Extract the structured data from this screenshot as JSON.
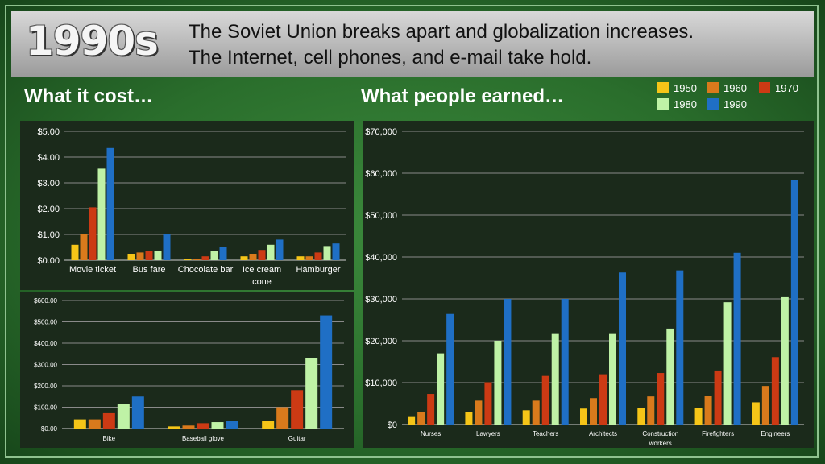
{
  "header": {
    "decade": "1990s",
    "line1": "The Soviet Union breaks apart and globalization increases.",
    "line2": "The Internet, cell phones, and e-mail take hold."
  },
  "sections": {
    "cost_title": "What it cost…",
    "earned_title": "What people earned…"
  },
  "legend": [
    {
      "label": "1950",
      "color": "#F5C518"
    },
    {
      "label": "1960",
      "color": "#D97A1C"
    },
    {
      "label": "1970",
      "color": "#CC3A14"
    },
    {
      "label": "1980",
      "color": "#BFF2A6"
    },
    {
      "label": "1990",
      "color": "#1F6FC5"
    }
  ],
  "chart_data": [
    {
      "type": "bar",
      "categories": [
        "Movie ticket",
        "Bus fare",
        "Chocolate bar",
        "Ice cream cone",
        "Hamburger"
      ],
      "category_lines": [
        [
          "Movie ticket"
        ],
        [
          "Bus fare"
        ],
        [
          "Chocolate bar"
        ],
        [
          "Ice cream",
          "cone"
        ],
        [
          "Hamburger"
        ]
      ],
      "series": [
        {
          "name": "1950",
          "values": [
            0.6,
            0.25,
            0.05,
            0.15,
            0.15
          ]
        },
        {
          "name": "1960",
          "values": [
            1.0,
            0.3,
            0.05,
            0.25,
            0.15
          ]
        },
        {
          "name": "1970",
          "values": [
            2.05,
            0.35,
            0.15,
            0.4,
            0.3
          ]
        },
        {
          "name": "1980",
          "values": [
            3.55,
            0.35,
            0.35,
            0.6,
            0.55
          ]
        },
        {
          "name": "1990",
          "values": [
            4.35,
            1.0,
            0.5,
            0.8,
            0.65
          ]
        }
      ],
      "ylim": [
        0,
        5
      ],
      "yticks": [
        0,
        1,
        2,
        3,
        4,
        5
      ],
      "ytick_labels": [
        "$0.00",
        "$1.00",
        "$2.00",
        "$3.00",
        "$4.00",
        "$5.00"
      ],
      "grid": true
    },
    {
      "type": "bar",
      "categories": [
        "Bike",
        "Baseball glove",
        "Guitar"
      ],
      "category_lines": [
        [
          "Bike"
        ],
        [
          "Baseball glove"
        ],
        [
          "Guitar"
        ]
      ],
      "series": [
        {
          "name": "1950",
          "values": [
            43,
            10,
            35
          ]
        },
        {
          "name": "1960",
          "values": [
            43,
            14,
            100
          ]
        },
        {
          "name": "1970",
          "values": [
            72,
            25,
            180
          ]
        },
        {
          "name": "1980",
          "values": [
            115,
            30,
            330
          ]
        },
        {
          "name": "1990",
          "values": [
            150,
            35,
            530
          ]
        }
      ],
      "ylim": [
        0,
        600
      ],
      "yticks": [
        0,
        100,
        200,
        300,
        400,
        500,
        600
      ],
      "ytick_labels": [
        "$0.00",
        "$100.00",
        "$200.00",
        "$300.00",
        "$400.00",
        "$500.00",
        "$600.00"
      ],
      "grid": true
    },
    {
      "type": "bar",
      "categories": [
        "Nurses",
        "Lawyers",
        "Teachers",
        "Architects",
        "Construction workers",
        "Firefighters",
        "Engineers"
      ],
      "category_lines": [
        [
          "Nurses"
        ],
        [
          "Lawyers"
        ],
        [
          "Teachers"
        ],
        [
          "Architects"
        ],
        [
          "Construction",
          "workers"
        ],
        [
          "Firefighters"
        ],
        [
          "Engineers"
        ]
      ],
      "series": [
        {
          "name": "1950",
          "values": [
            1800,
            3000,
            3400,
            3800,
            3900,
            4000,
            5300
          ]
        },
        {
          "name": "1960",
          "values": [
            3000,
            5700,
            5700,
            6300,
            6700,
            6900,
            9200
          ]
        },
        {
          "name": "1970",
          "values": [
            7300,
            10100,
            11600,
            12000,
            12300,
            12900,
            16100
          ]
        },
        {
          "name": "1980",
          "values": [
            17000,
            20000,
            21800,
            21800,
            22900,
            29200,
            30400
          ]
        },
        {
          "name": "1990",
          "values": [
            26400,
            30000,
            30000,
            36300,
            36800,
            41000,
            58300
          ]
        }
      ],
      "ylim": [
        0,
        70000
      ],
      "yticks": [
        0,
        10000,
        20000,
        30000,
        40000,
        50000,
        60000,
        70000
      ],
      "ytick_labels": [
        "$0",
        "$10,000",
        "$20,000",
        "$30,000",
        "$40,000",
        "$50,000",
        "$60,000",
        "$70,000"
      ],
      "grid": true
    }
  ]
}
